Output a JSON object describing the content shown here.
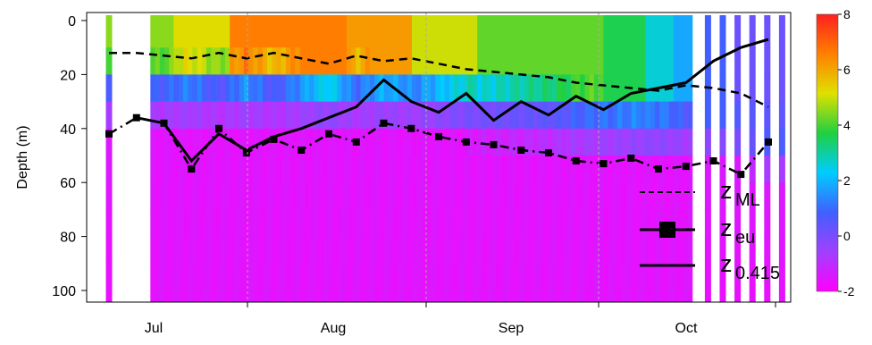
{
  "chart_data": {
    "type": "heatmap",
    "ylabel": "Depth (m)",
    "x_ticks": [
      "Jul",
      "Aug",
      "Sep",
      "Oct"
    ],
    "y_ticks": [
      0,
      20,
      40,
      60,
      80,
      100
    ],
    "ylim": [
      0,
      103
    ],
    "y_reversed": true,
    "colorbar": {
      "ticks": [
        8,
        6,
        4,
        2,
        0,
        -2
      ],
      "range": [
        -2,
        8
      ],
      "colors": [
        "#ff00ff",
        "#a040ff",
        "#4060ff",
        "#00ccff",
        "#20d040",
        "#e0e000",
        "#ff8000",
        "#ff2020"
      ]
    },
    "legend": {
      "entries": [
        {
          "base": "z",
          "sub": "ML",
          "style": "dashed"
        },
        {
          "base": "z",
          "sub": "eu",
          "style": "dash-dot-square"
        },
        {
          "base": "z",
          "sub": "0.415",
          "style": "solid"
        }
      ],
      "position": "bottom-right"
    },
    "series": [
      {
        "name": "zML",
        "x": [
          0,
          5,
          10,
          15,
          20,
          25,
          30,
          35,
          40,
          45,
          50,
          55,
          60,
          65,
          70,
          75,
          80,
          85,
          90,
          95,
          100,
          105,
          110,
          115,
          120
        ],
        "y": [
          12,
          12,
          13,
          14,
          12,
          14,
          12,
          14,
          16,
          13,
          15,
          14,
          16,
          18,
          19,
          20,
          21,
          23,
          24,
          25,
          26,
          24,
          25,
          27,
          32
        ]
      },
      {
        "name": "zeu",
        "x": [
          0,
          5,
          10,
          15,
          20,
          25,
          30,
          35,
          40,
          45,
          50,
          55,
          60,
          65,
          70,
          75,
          80,
          85,
          90,
          95,
          100,
          105,
          110,
          115,
          120
        ],
        "y": [
          42,
          36,
          38,
          55,
          40,
          49,
          44,
          48,
          42,
          45,
          38,
          40,
          43,
          45,
          46,
          48,
          49,
          52,
          53,
          51,
          55,
          54,
          52,
          57,
          45
        ]
      },
      {
        "name": "z0.415",
        "x": [
          5,
          10,
          15,
          20,
          25,
          30,
          35,
          40,
          45,
          50,
          55,
          60,
          65,
          70,
          75,
          80,
          85,
          90,
          95,
          100,
          105,
          110,
          115,
          120
        ],
        "y": [
          36,
          38,
          52,
          42,
          48,
          43,
          40,
          36,
          32,
          22,
          30,
          34,
          27,
          37,
          30,
          35,
          28,
          33,
          27,
          25,
          23,
          15,
          10,
          7
        ]
      }
    ]
  }
}
